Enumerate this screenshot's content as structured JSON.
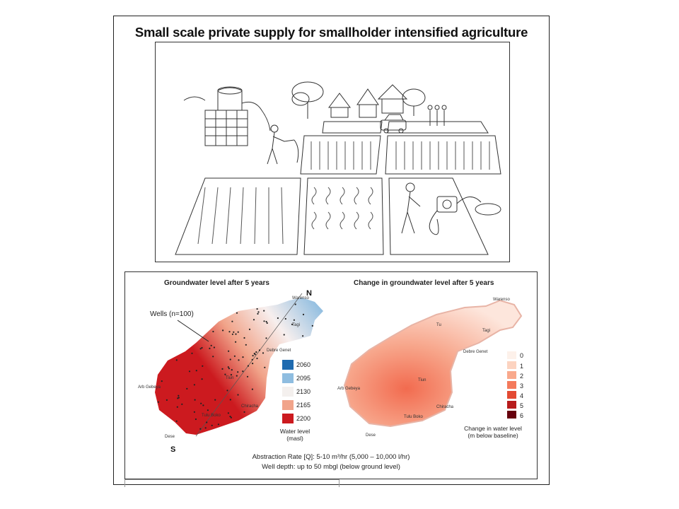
{
  "title": "Small scale private supply for smallholder intensified agriculture",
  "left_map": {
    "title": "Groundwater level after 5 years",
    "wells_label": "Wells (n=100)",
    "north": "N",
    "south": "S",
    "legend": {
      "values": [
        "2060",
        "2095",
        "2130",
        "2165",
        "2200"
      ],
      "colors": [
        "#1f6bb0",
        "#8fbde0",
        "#f4f0ee",
        "#f1a48a",
        "#cc1a1f"
      ],
      "caption_line1": "Water level",
      "caption_line2": "(masl)"
    },
    "places": [
      "Warenso",
      "Tagi",
      "Debre Genet",
      "Tiun",
      "Arb Gebeya",
      "Chiracha",
      "Tulu Boko",
      "Dese"
    ]
  },
  "right_map": {
    "title": "Change in groundwater level after 5 years",
    "legend": {
      "values": [
        "0",
        "1",
        "2",
        "3",
        "4",
        "5",
        "6"
      ],
      "colors": [
        "#fdf1ea",
        "#fcd3c0",
        "#f9a98c",
        "#f47a5c",
        "#e34a33",
        "#b71c1c",
        "#67000d"
      ],
      "caption_line1": "Change in water level",
      "caption_line2": "(m below baseline)"
    },
    "places": [
      "Warenso",
      "Tu",
      "Tagi",
      "Debre Genet",
      "Tiun",
      "Arb Gebeya",
      "Chiracha",
      "Tulu Boko",
      "Dese"
    ]
  },
  "footer": {
    "line1": "Abstraction Rate [Q]: 5-10 m³/hr (5,000 – 10,000 l/hr)",
    "line2": "Well depth: up to 50 mbgl (below ground level)"
  }
}
